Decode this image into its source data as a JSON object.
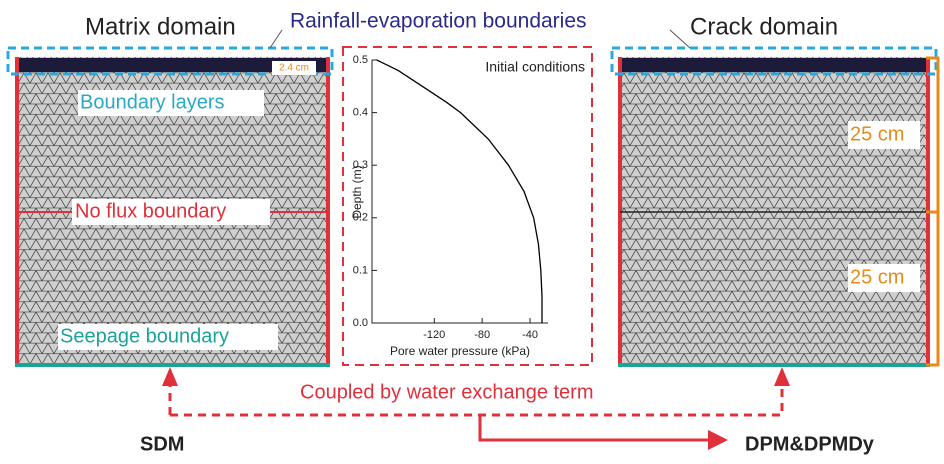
{
  "labels": {
    "matrix_domain": "Matrix domain",
    "rainfall": "Rainfall-evaporation boundaries",
    "crack_domain": "Crack domain",
    "thickness": "2.4 cm",
    "boundary_layers": "Boundary layers",
    "no_flux": "No flux boundary",
    "seepage": "Seepage boundary",
    "upper_depth": "25 cm",
    "lower_depth": "25 cm",
    "coupled": "Coupled by water exchange term",
    "sdm": "SDM",
    "dpm": "DPM&DPMDy"
  },
  "chart_data": {
    "type": "line",
    "annotation": "Initial conditions",
    "x_label": "Pore water pressure (kPa)",
    "y_label": "Depth (m)",
    "x": [
      -168,
      -150,
      -130,
      -110,
      -98,
      -75,
      -58,
      -45,
      -37,
      -33,
      -31,
      -30,
      -30
    ],
    "series": [
      {
        "color": "#000000",
        "values": [
          0.5,
          0.48,
          0.45,
          0.42,
          0.4,
          0.35,
          0.3,
          0.25,
          0.2,
          0.15,
          0.1,
          0.05,
          0.0
        ]
      }
    ],
    "xlim": [
      -172,
      -25
    ],
    "xticks": [
      -120,
      -80,
      -40
    ],
    "ylim": [
      0,
      0.5
    ],
    "yticks": [
      {
        "value": 0,
        "label": "0.0"
      },
      0.1,
      0.2,
      0.3,
      0.4,
      0.5
    ]
  }
}
